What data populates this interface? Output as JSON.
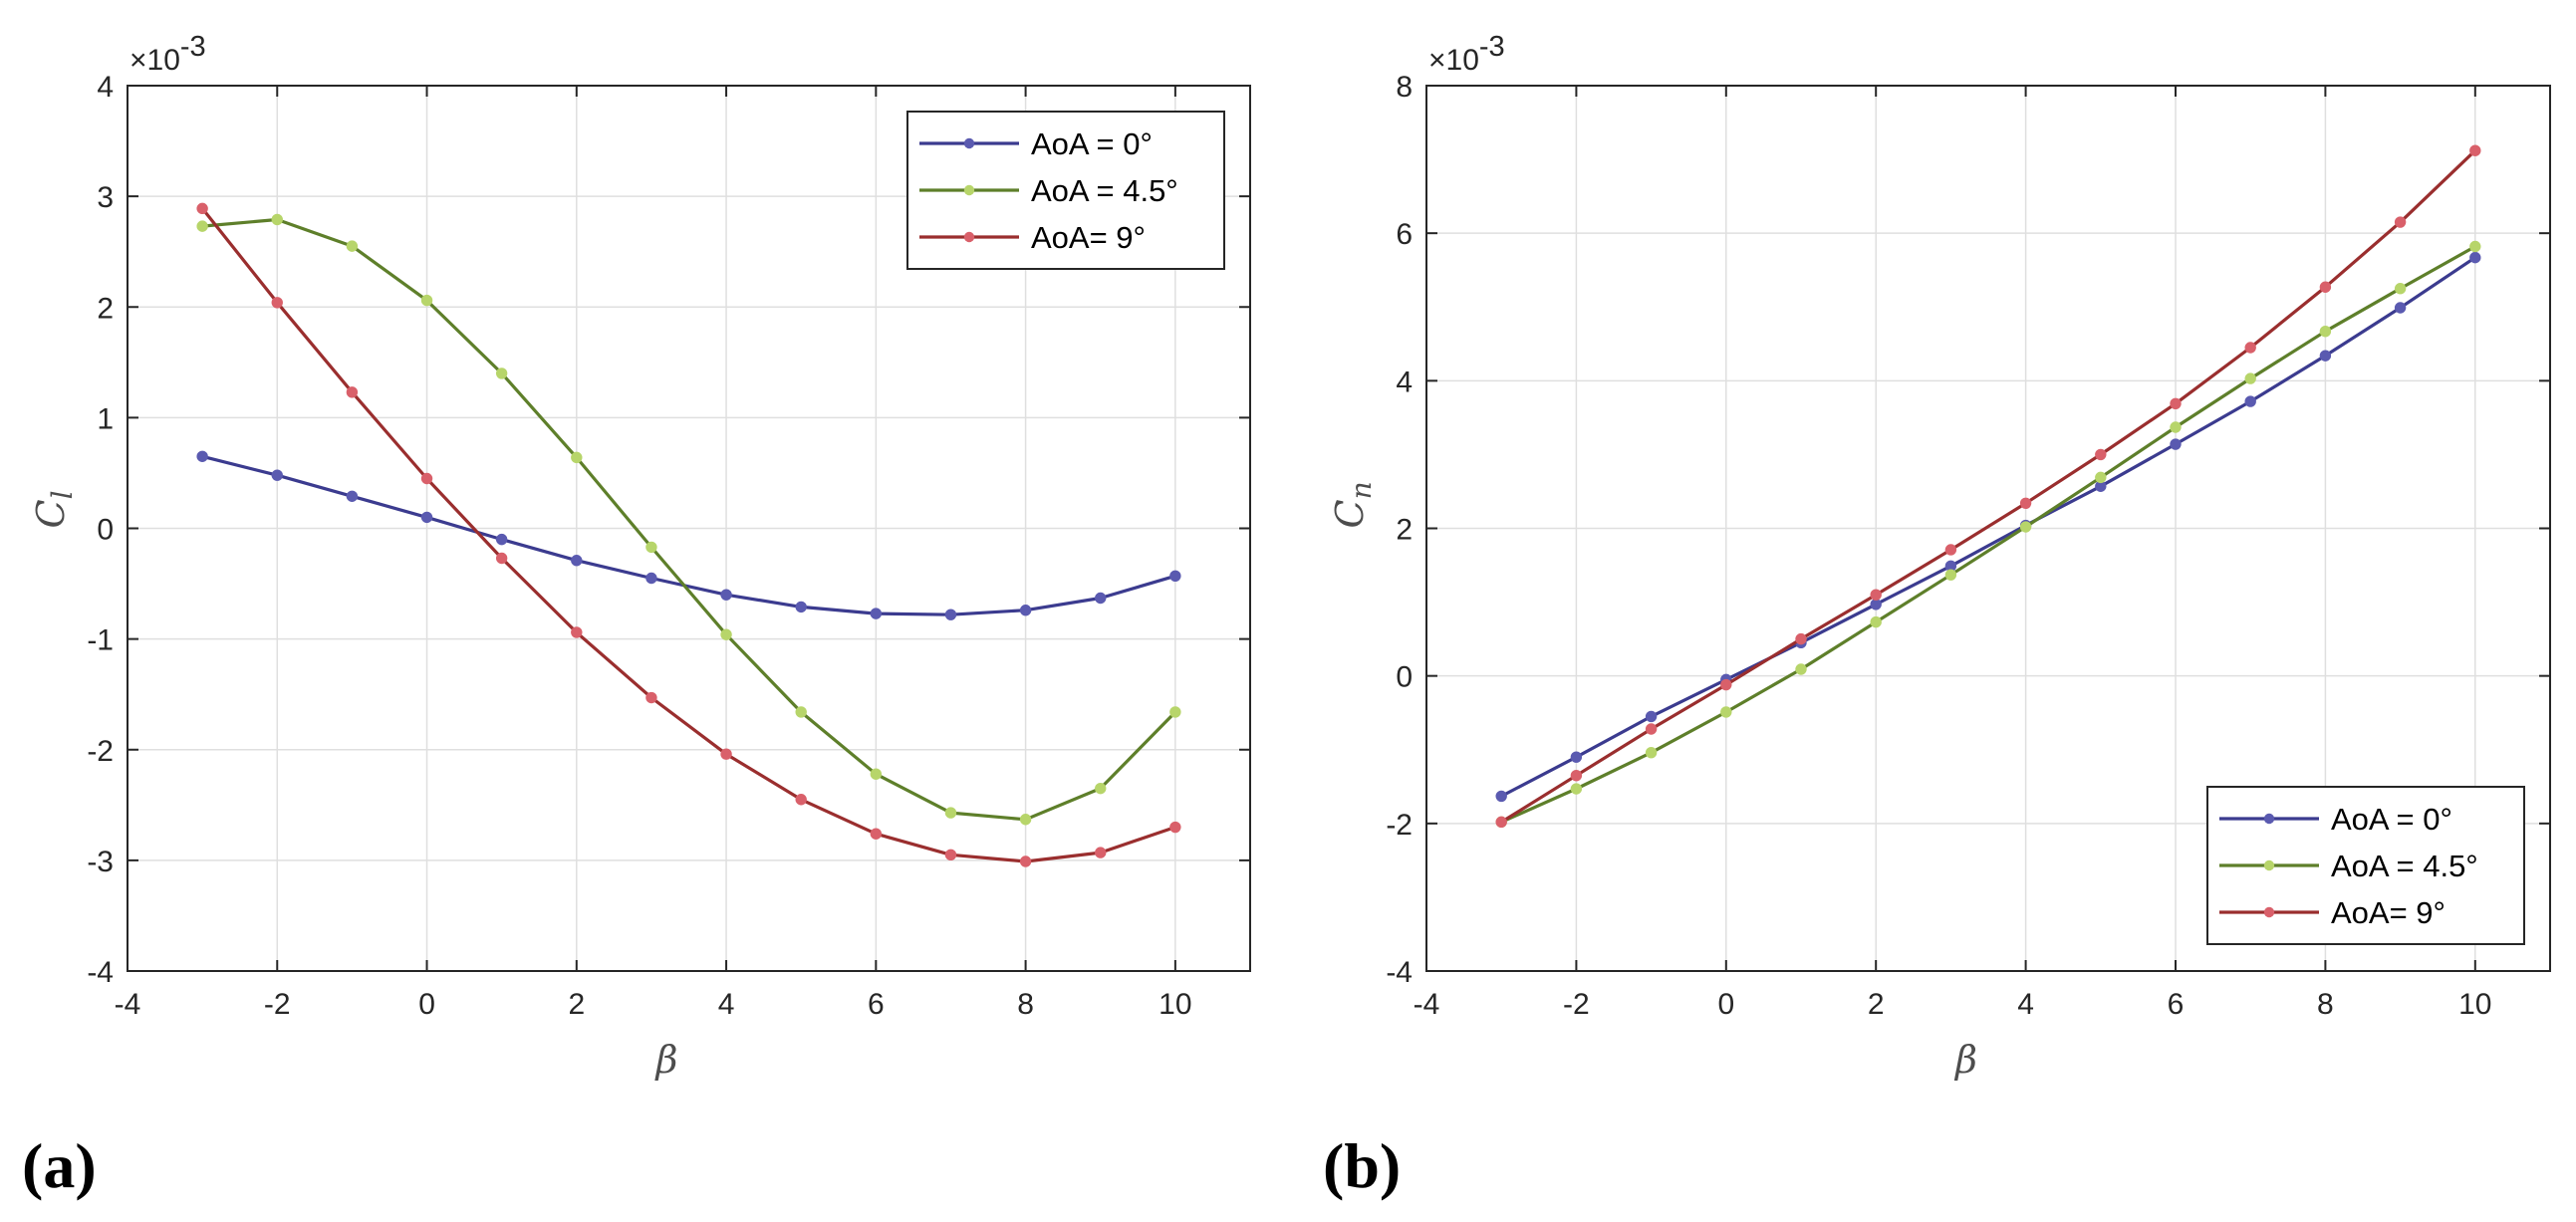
{
  "chart_data": [
    {
      "type": "line",
      "panel_label": "(a)",
      "xlabel": "β",
      "ylabel_main": "C",
      "ylabel_sub": "l",
      "y_multiplier": "×10",
      "y_multiplier_exp": "-3",
      "xlim": [
        -4,
        11
      ],
      "ylim": [
        -4,
        4
      ],
      "xticks": [
        -4,
        -2,
        0,
        2,
        4,
        6,
        8,
        10
      ],
      "yticks": [
        -4,
        -3,
        -2,
        -1,
        0,
        1,
        2,
        3,
        4
      ],
      "grid": true,
      "legend_position": "top-right",
      "x": [
        -3,
        -2,
        -1,
        0,
        1,
        2,
        3,
        4,
        5,
        6,
        7,
        8,
        9,
        10
      ],
      "series": [
        {
          "name": "AoA = 0°",
          "color": "#3b3b8f",
          "marker": "#5a5ab0",
          "values": [
            0.65,
            0.48,
            0.29,
            0.1,
            -0.1,
            -0.29,
            -0.45,
            -0.6,
            -0.71,
            -0.77,
            -0.78,
            -0.74,
            -0.63,
            -0.43
          ]
        },
        {
          "name": "AoA = 4.5°",
          "color": "#5e7f2a",
          "marker": "#b7d56a",
          "values": [
            2.73,
            2.79,
            2.55,
            2.06,
            1.4,
            0.64,
            -0.17,
            -0.96,
            -1.66,
            -2.22,
            -2.57,
            -2.63,
            -2.35,
            -1.66
          ]
        },
        {
          "name": "AoA= 9°",
          "color": "#9a2e2e",
          "marker": "#d9606a",
          "values": [
            2.89,
            2.04,
            1.23,
            0.45,
            -0.27,
            -0.94,
            -1.53,
            -2.04,
            -2.45,
            -2.76,
            -2.95,
            -3.01,
            -2.93,
            -2.7
          ]
        }
      ]
    },
    {
      "type": "line",
      "panel_label": "(b)",
      "xlabel": "β",
      "ylabel_main": "C",
      "ylabel_sub": "n",
      "y_multiplier": "×10",
      "y_multiplier_exp": "-3",
      "xlim": [
        -4,
        11
      ],
      "ylim": [
        -4,
        8
      ],
      "xticks": [
        -4,
        -2,
        0,
        2,
        4,
        6,
        8,
        10
      ],
      "yticks": [
        -4,
        -2,
        0,
        2,
        4,
        6,
        8
      ],
      "grid": true,
      "legend_position": "bottom-right",
      "x": [
        -3,
        -2,
        -1,
        0,
        1,
        2,
        3,
        4,
        5,
        6,
        7,
        8,
        9,
        10
      ],
      "series": [
        {
          "name": "AoA = 0°",
          "color": "#3b3b8f",
          "marker": "#5a5ab0",
          "values": [
            -1.63,
            -1.1,
            -0.55,
            -0.05,
            0.45,
            0.97,
            1.49,
            2.04,
            2.57,
            3.14,
            3.72,
            4.34,
            4.99,
            5.67
          ]
        },
        {
          "name": "AoA = 4.5°",
          "color": "#5e7f2a",
          "marker": "#b7d56a",
          "values": [
            -1.98,
            -1.53,
            -1.04,
            -0.49,
            0.09,
            0.73,
            1.37,
            2.02,
            2.69,
            3.37,
            4.03,
            4.67,
            5.25,
            5.82
          ]
        },
        {
          "name": "AoA= 9°",
          "color": "#9a2e2e",
          "marker": "#d9606a",
          "values": [
            -1.98,
            -1.35,
            -0.72,
            -0.12,
            0.5,
            1.1,
            1.71,
            2.34,
            3.0,
            3.69,
            4.45,
            5.27,
            6.15,
            7.12
          ]
        }
      ]
    }
  ]
}
